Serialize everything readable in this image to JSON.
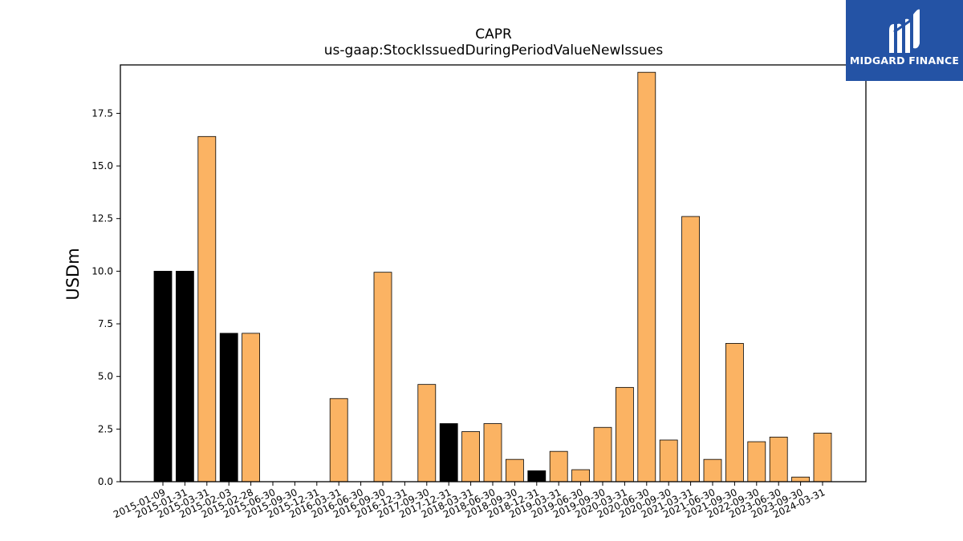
{
  "chart_data": {
    "type": "bar",
    "title": "CAPR",
    "subtitle": "us-gaap:StockIssuedDuringPeriodValueNewIssues",
    "ylabel": "USDm",
    "xlabel": "",
    "ylim": [
      0,
      19.8
    ],
    "yticks": [
      "0.0",
      "2.5",
      "5.0",
      "7.5",
      "10.0",
      "12.5",
      "15.0",
      "17.5"
    ],
    "grid": false,
    "colors": {
      "orange": "#fbb363",
      "black": "#000000"
    },
    "categories": [
      "2015-01-09",
      "2015-01-31",
      "2015-03-31",
      "2015-02-03",
      "2015-02-28",
      "2015-06-30",
      "2015-09-30",
      "2015-12-31",
      "2016-03-31",
      "2016-06-30",
      "2016-09-30",
      "2016-12-31",
      "2017-09-30",
      "2017-12-31",
      "2018-03-31",
      "2018-06-30",
      "2018-09-30",
      "2018-12-31",
      "2019-03-31",
      "2019-06-30",
      "2019-09-30",
      "2020-03-31",
      "2020-06-30",
      "2020-09-30",
      "2021-03-31",
      "2021-06-30",
      "2021-09-30",
      "2022-09-30",
      "2023-06-30",
      "2023-09-30",
      "2024-03-31"
    ],
    "values": [
      10.0,
      10.0,
      16.4,
      7.05,
      7.05,
      0,
      0,
      0,
      3.95,
      0,
      9.95,
      0,
      4.62,
      2.76,
      2.38,
      2.76,
      1.06,
      0.52,
      1.44,
      0.57,
      2.58,
      4.48,
      19.45,
      1.98,
      12.6,
      1.06,
      6.57,
      1.9,
      2.12,
      0.22,
      2.31
    ],
    "bar_colors": [
      "black",
      "black",
      "orange",
      "black",
      "orange",
      "orange",
      "orange",
      "orange",
      "orange",
      "orange",
      "orange",
      "orange",
      "orange",
      "black",
      "orange",
      "orange",
      "orange",
      "black",
      "orange",
      "orange",
      "orange",
      "orange",
      "orange",
      "orange",
      "orange",
      "orange",
      "orange",
      "orange",
      "orange",
      "orange",
      "orange"
    ]
  },
  "logo": {
    "text": "MIDGARD FINANCE",
    "icon": "midgard-logo-icon"
  }
}
